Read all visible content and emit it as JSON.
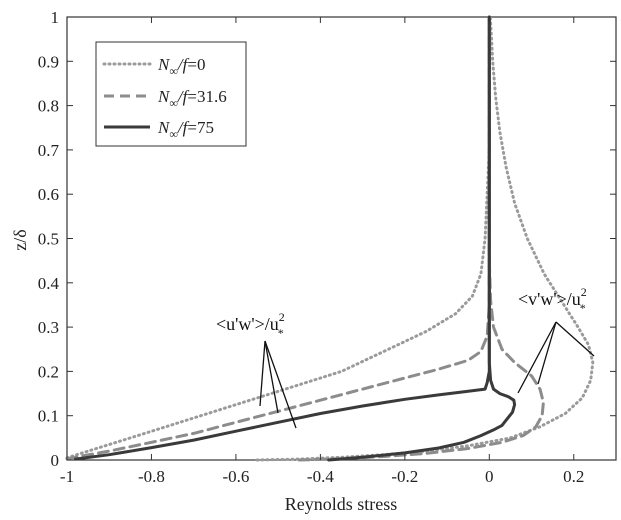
{
  "chart_data": {
    "type": "line",
    "xlabel": "Reynolds stress",
    "ylabel": "z/δ",
    "xlim": [
      -1,
      0.3
    ],
    "ylim": [
      0,
      1
    ],
    "xticks": [
      -1,
      -0.8,
      -0.6,
      -0.4,
      -0.2,
      0,
      0.2
    ],
    "xtick_labels": [
      "-1",
      "-0.8",
      "-0.6",
      "-0.4",
      "-0.2",
      "0",
      "0.2"
    ],
    "yticks": [
      0,
      0.1,
      0.2,
      0.3,
      0.4,
      0.5,
      0.6,
      0.7,
      0.8,
      0.9,
      1
    ],
    "ytick_labels": [
      "0",
      "0.1",
      "0.2",
      "0.3",
      "0.4",
      "0.5",
      "0.6",
      "0.7",
      "0.8",
      "0.9",
      "1"
    ],
    "grid": false,
    "legend_position": "top-left",
    "legend": [
      {
        "prefix": "N",
        "sub": "∞",
        "suffix": "/f",
        "value": "=0",
        "style": "dotted",
        "color": "#9a9a9a"
      },
      {
        "prefix": "N",
        "sub": "∞",
        "suffix": "/f",
        "value": "=31.6",
        "style": "dashed",
        "color": "#8c8c8c"
      },
      {
        "prefix": "N",
        "sub": "∞",
        "suffix": "/f",
        "value": "=75",
        "style": "solid",
        "color": "#3a3a3a"
      }
    ],
    "annotations": [
      {
        "base": "<u'w'>/u",
        "sup": "2",
        "sub": "*",
        "component": "u'w'"
      },
      {
        "base": "<v'w'>/u",
        "sup": "2",
        "sub": "*",
        "component": "v'w'"
      }
    ],
    "series": [
      {
        "component": "u'w'",
        "style": "dotted",
        "color": "#9a9a9a",
        "points": [
          [
            -1.0,
            0.005
          ],
          [
            -0.95,
            0.02
          ],
          [
            -0.85,
            0.05
          ],
          [
            -0.75,
            0.08
          ],
          [
            -0.65,
            0.11
          ],
          [
            -0.55,
            0.14
          ],
          [
            -0.45,
            0.17
          ],
          [
            -0.35,
            0.2
          ],
          [
            -0.25,
            0.245
          ],
          [
            -0.15,
            0.29
          ],
          [
            -0.08,
            0.33
          ],
          [
            -0.04,
            0.37
          ],
          [
            -0.02,
            0.42
          ],
          [
            -0.01,
            0.5
          ],
          [
            -0.005,
            0.6
          ],
          [
            0,
            0.7
          ],
          [
            0,
            0.8
          ],
          [
            0,
            0.9
          ],
          [
            0,
            1.0
          ]
        ]
      },
      {
        "component": "u'w'",
        "style": "dashed",
        "color": "#8c8c8c",
        "points": [
          [
            -1.0,
            0.003
          ],
          [
            -0.9,
            0.02
          ],
          [
            -0.8,
            0.04
          ],
          [
            -0.7,
            0.06
          ],
          [
            -0.6,
            0.085
          ],
          [
            -0.5,
            0.11
          ],
          [
            -0.4,
            0.135
          ],
          [
            -0.3,
            0.16
          ],
          [
            -0.2,
            0.185
          ],
          [
            -0.12,
            0.205
          ],
          [
            -0.05,
            0.225
          ],
          [
            -0.02,
            0.245
          ],
          [
            -0.005,
            0.28
          ],
          [
            0,
            0.35
          ],
          [
            0,
            0.5
          ],
          [
            0,
            0.7
          ],
          [
            0,
            1.0
          ]
        ]
      },
      {
        "component": "u'w'",
        "style": "solid",
        "color": "#3a3a3a",
        "points": [
          [
            -0.98,
            0.002
          ],
          [
            -0.9,
            0.012
          ],
          [
            -0.8,
            0.028
          ],
          [
            -0.7,
            0.045
          ],
          [
            -0.6,
            0.065
          ],
          [
            -0.5,
            0.085
          ],
          [
            -0.4,
            0.105
          ],
          [
            -0.3,
            0.122
          ],
          [
            -0.2,
            0.137
          ],
          [
            -0.12,
            0.147
          ],
          [
            -0.05,
            0.155
          ],
          [
            -0.01,
            0.16
          ],
          [
            -0.005,
            0.175
          ],
          [
            0,
            0.2
          ],
          [
            0,
            0.5
          ],
          [
            0,
            0.8
          ],
          [
            0,
            1.0
          ]
        ]
      },
      {
        "component": "v'w'",
        "style": "dotted",
        "color": "#9a9a9a",
        "points": [
          [
            -0.55,
            0.0
          ],
          [
            -0.45,
            0.002
          ],
          [
            -0.35,
            0.006
          ],
          [
            -0.25,
            0.012
          ],
          [
            -0.15,
            0.02
          ],
          [
            -0.05,
            0.032
          ],
          [
            0.05,
            0.05
          ],
          [
            0.12,
            0.075
          ],
          [
            0.18,
            0.105
          ],
          [
            0.22,
            0.14
          ],
          [
            0.24,
            0.18
          ],
          [
            0.245,
            0.22
          ],
          [
            0.235,
            0.26
          ],
          [
            0.21,
            0.3
          ],
          [
            0.17,
            0.36
          ],
          [
            0.13,
            0.42
          ],
          [
            0.09,
            0.5
          ],
          [
            0.06,
            0.58
          ],
          [
            0.04,
            0.66
          ],
          [
            0.025,
            0.74
          ],
          [
            0.015,
            0.82
          ],
          [
            0.008,
            0.9
          ],
          [
            0.004,
            0.97
          ],
          [
            0.002,
            1.0
          ]
        ]
      },
      {
        "component": "v'w'",
        "style": "dashed",
        "color": "#8c8c8c",
        "points": [
          [
            -0.45,
            0.0
          ],
          [
            -0.35,
            0.003
          ],
          [
            -0.25,
            0.008
          ],
          [
            -0.15,
            0.015
          ],
          [
            -0.05,
            0.026
          ],
          [
            0.03,
            0.04
          ],
          [
            0.08,
            0.055
          ],
          [
            0.11,
            0.075
          ],
          [
            0.125,
            0.1
          ],
          [
            0.128,
            0.13
          ],
          [
            0.12,
            0.16
          ],
          [
            0.1,
            0.19
          ],
          [
            0.06,
            0.22
          ],
          [
            0.03,
            0.25
          ],
          [
            0.01,
            0.3
          ],
          [
            0.003,
            0.36
          ],
          [
            0,
            0.45
          ],
          [
            0,
            0.6
          ],
          [
            0,
            0.8
          ],
          [
            0,
            1.0
          ]
        ]
      },
      {
        "component": "v'w'",
        "style": "solid",
        "color": "#3a3a3a",
        "points": [
          [
            -0.38,
            0.0
          ],
          [
            -0.3,
            0.006
          ],
          [
            -0.2,
            0.016
          ],
          [
            -0.12,
            0.027
          ],
          [
            -0.06,
            0.04
          ],
          [
            -0.02,
            0.055
          ],
          [
            0.01,
            0.068
          ],
          [
            0.03,
            0.078
          ],
          [
            0.04,
            0.09
          ],
          [
            0.055,
            0.108
          ],
          [
            0.06,
            0.125
          ],
          [
            0.058,
            0.135
          ],
          [
            0.045,
            0.143
          ],
          [
            0.025,
            0.15
          ],
          [
            0.01,
            0.16
          ],
          [
            0.003,
            0.18
          ],
          [
            0,
            0.22
          ],
          [
            0,
            0.4
          ],
          [
            0,
            0.7
          ],
          [
            0,
            1.0
          ]
        ]
      }
    ]
  }
}
